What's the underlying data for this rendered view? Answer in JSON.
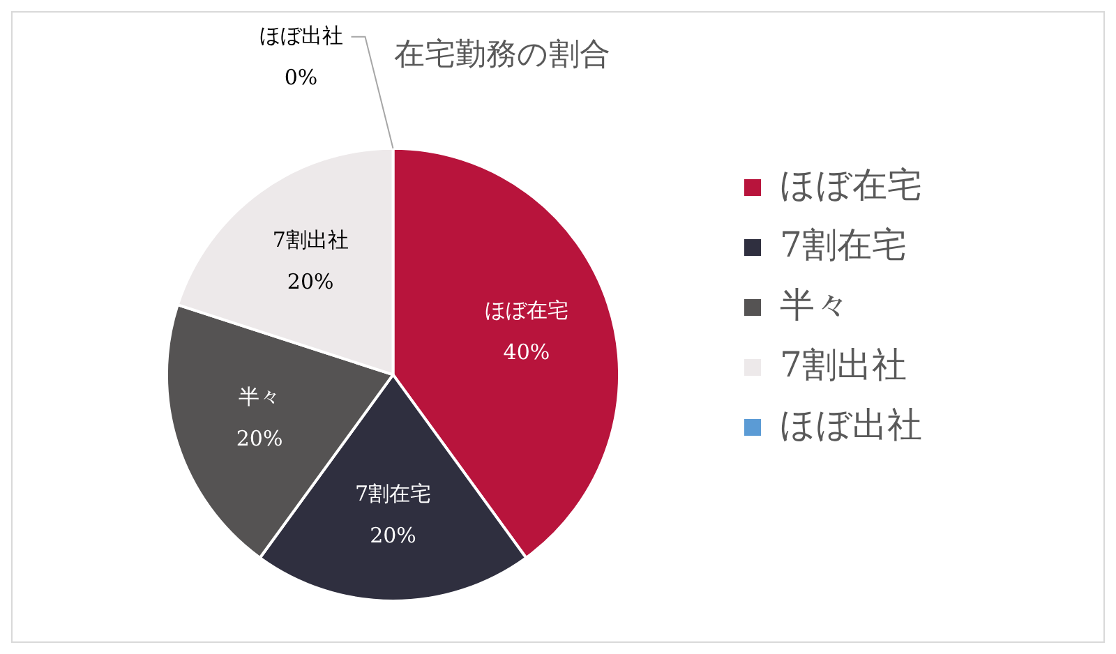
{
  "chart_data": {
    "type": "pie",
    "title": "在宅勤務の割合",
    "categories": [
      "ほぼ在宅",
      "7割在宅",
      "半々",
      "7割出社",
      "ほぼ出社"
    ],
    "values": [
      40,
      20,
      20,
      20,
      0
    ],
    "colors": [
      "#b8143c",
      "#2f2f3f",
      "#555353",
      "#ede9ea",
      "#5b9bd5"
    ],
    "value_labels": [
      "40%",
      "20%",
      "20%",
      "20%",
      "0%"
    ],
    "legend": "right"
  }
}
